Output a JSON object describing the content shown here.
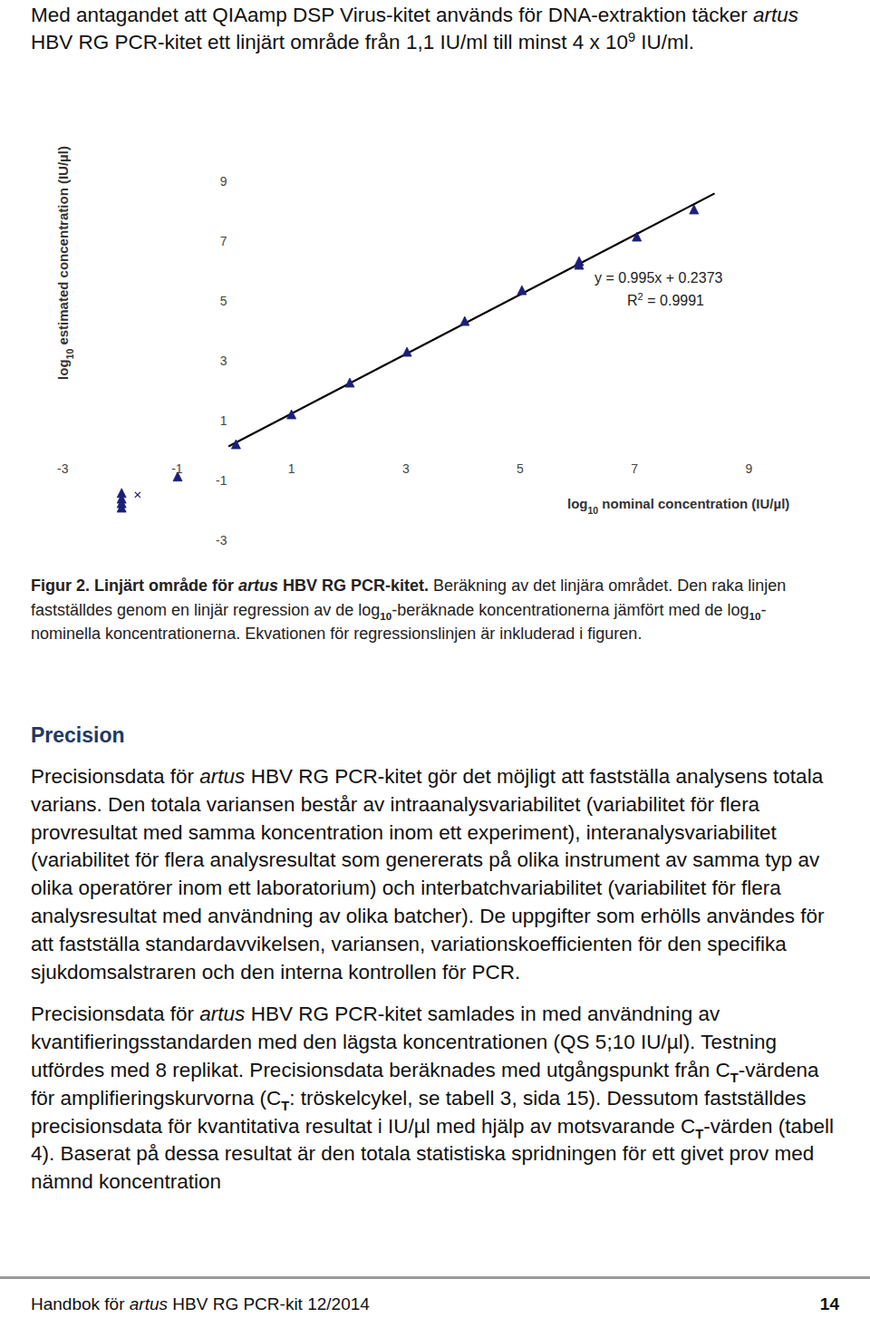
{
  "intro": [
    {
      "t": "Med antagandet att QIAamp DSP Virus-kitet används för DNA-extraktion täcker "
    },
    {
      "t": "artus",
      "style": "i"
    },
    {
      "t": " HBV RG PCR-kitet ett linjärt område från 1,1 IU/ml till minst 4 x 10"
    },
    {
      "t": "9",
      "style": "sup"
    },
    {
      "t": " IU/ml."
    }
  ],
  "chart_data": {
    "type": "scatter",
    "x_label": [
      {
        "t": "log"
      },
      {
        "t": "10",
        "style": "sub"
      },
      {
        "t": " nominal concentration (IU/µl)"
      }
    ],
    "y_label": [
      {
        "t": "log"
      },
      {
        "t": "10",
        "style": "sub"
      },
      {
        "t": " estimated concentration (IU/µl)"
      }
    ],
    "xlim": [
      -3,
      9
    ],
    "ylim": [
      -3,
      9
    ],
    "xticks": [
      -3,
      -1,
      1,
      3,
      5,
      7,
      9
    ],
    "yticks": [
      -3,
      -1,
      1,
      3,
      5,
      7,
      9
    ],
    "series": [
      {
        "marker": "triangle",
        "color": "#1c1f7a",
        "x": [
          0.03,
          1.0,
          2.02,
          3.02,
          4.03,
          5.03,
          6.03,
          6.03,
          7.04,
          8.04,
          -0.99,
          -1.97,
          -1.97,
          -1.97,
          -1.97
        ],
        "values": [
          0.18,
          1.18,
          2.24,
          3.27,
          4.3,
          5.33,
          6.3,
          6.18,
          7.12,
          8.03,
          -0.9,
          -1.45,
          -1.64,
          -1.79,
          -1.94
        ]
      },
      {
        "marker": "x",
        "color": "#1c1f7a",
        "x": [
          -1.69
        ],
        "values": [
          -1.48
        ]
      }
    ],
    "regression": {
      "slope": 0.995,
      "intercept": 0.2373,
      "x": [
        -0.1,
        8.4
      ],
      "color": "#000000",
      "equation": "y = 0.995x + 0.2373",
      "r2_label": [
        {
          "t": "R"
        },
        {
          "t": "2",
          "style": "sup"
        },
        {
          "t": " = 0.9991"
        }
      ]
    }
  },
  "caption": [
    {
      "t": "Figur 2. Linjärt område för ",
      "style": "b"
    },
    {
      "t": "artus",
      "style": "bi"
    },
    {
      "t": " HBV RG PCR-kitet.",
      "style": "b"
    },
    {
      "t": "  Beräkning av det linjära området. Den raka linjen fastställdes genom en linjär regression av de log"
    },
    {
      "t": "10",
      "style": "sub"
    },
    {
      "t": "-beräknade koncentrationerna jämfört med de log"
    },
    {
      "t": "10",
      "style": "sub"
    },
    {
      "t": "-nominella koncentrationerna. Ekvationen för regressionslinjen är inkluderad i figuren."
    }
  ],
  "section": {
    "heading": "Precision",
    "paragraphs": [
      [
        {
          "t": "Precisionsdata för "
        },
        {
          "t": "artus",
          "style": "i"
        },
        {
          "t": " HBV RG PCR-kitet gör det möjligt att fastställa analysens totala varians. Den totala variansen består av intraanalysvariabilitet (variabilitet för flera provresultat med samma koncentration inom ett experiment), interanalysvariabilitet (variabilitet för flera analysresultat som genererats på olika instrument av samma typ av olika operatörer inom ett laboratorium) och interbatchvariabilitet (variabilitet för flera analysresultat med användning av olika batcher). De uppgifter som erhölls användes för att fastställa standardavvikelsen, variansen, variationskoefficienten för den specifika sjukdomsalstraren och den interna kontrollen för PCR."
        }
      ],
      [
        {
          "t": "Precisionsdata för "
        },
        {
          "t": "artus",
          "style": "i"
        },
        {
          "t": " HBV RG PCR-kitet samlades in med användning av kvantifieringsstandarden med den lägsta koncentrationen (QS 5;10 IU/µl). Testning utfördes med 8 replikat. Precisionsdata beräknades med utgångspunkt från C"
        },
        {
          "t": "T",
          "style": "sub"
        },
        {
          "t": "-värdena för amplifieringskurvorna (C"
        },
        {
          "t": "T",
          "style": "sub"
        },
        {
          "t": ": tröskelcykel, se tabell 3, sida 15). Dessutom fastställdes precisionsdata för kvantitativa resultat i IU/µl med hjälp av motsvarande C"
        },
        {
          "t": "T",
          "style": "sub"
        },
        {
          "t": "-värden (tabell 4). Baserat på dessa resultat är den totala statistiska spridningen för ett givet prov med nämnd koncentration"
        }
      ]
    ]
  },
  "footer": {
    "left": [
      {
        "t": "Handbok för "
      },
      {
        "t": "artus",
        "style": "i"
      },
      {
        "t": " HBV RG PCR-kit 12/2014"
      }
    ],
    "page": "14"
  }
}
